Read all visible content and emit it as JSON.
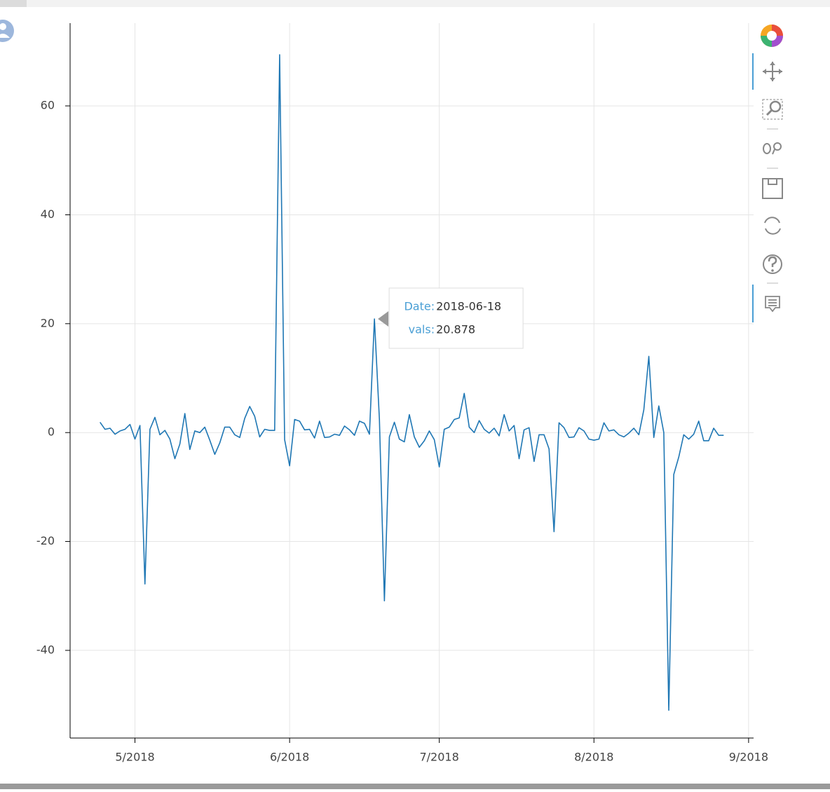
{
  "chart_data": {
    "type": "line",
    "x": [
      "2018-04-24",
      "2018-04-25",
      "2018-04-26",
      "2018-04-27",
      "2018-04-28",
      "2018-04-29",
      "2018-04-30",
      "2018-05-01",
      "2018-05-02",
      "2018-05-03",
      "2018-05-04",
      "2018-05-05",
      "2018-05-06",
      "2018-05-07",
      "2018-05-08",
      "2018-05-09",
      "2018-05-10",
      "2018-05-11",
      "2018-05-12",
      "2018-05-13",
      "2018-05-14",
      "2018-05-15",
      "2018-05-16",
      "2018-05-17",
      "2018-05-18",
      "2018-05-19",
      "2018-05-20",
      "2018-05-21",
      "2018-05-22",
      "2018-05-23",
      "2018-05-24",
      "2018-05-25",
      "2018-05-26",
      "2018-05-27",
      "2018-05-28",
      "2018-05-29",
      "2018-05-30",
      "2018-05-31",
      "2018-06-01",
      "2018-06-02",
      "2018-06-03",
      "2018-06-04",
      "2018-06-05",
      "2018-06-06",
      "2018-06-07",
      "2018-06-08",
      "2018-06-09",
      "2018-06-10",
      "2018-06-11",
      "2018-06-12",
      "2018-06-13",
      "2018-06-14",
      "2018-06-15",
      "2018-06-16",
      "2018-06-17",
      "2018-06-18",
      "2018-06-19",
      "2018-06-20",
      "2018-06-21",
      "2018-06-22",
      "2018-06-23",
      "2018-06-24",
      "2018-06-25",
      "2018-06-26",
      "2018-06-27",
      "2018-06-28",
      "2018-06-29",
      "2018-06-30",
      "2018-07-01",
      "2018-07-02",
      "2018-07-03",
      "2018-07-04",
      "2018-07-05",
      "2018-07-06",
      "2018-07-07",
      "2018-07-08",
      "2018-07-09",
      "2018-07-10",
      "2018-07-11",
      "2018-07-12",
      "2018-07-13",
      "2018-07-14",
      "2018-07-15",
      "2018-07-16",
      "2018-07-17",
      "2018-07-18",
      "2018-07-19",
      "2018-07-20",
      "2018-07-21",
      "2018-07-22",
      "2018-07-23",
      "2018-07-24",
      "2018-07-25",
      "2018-07-26",
      "2018-07-27",
      "2018-07-28",
      "2018-07-29",
      "2018-07-30",
      "2018-07-31",
      "2018-08-01",
      "2018-08-02",
      "2018-08-03",
      "2018-08-04",
      "2018-08-05",
      "2018-08-06",
      "2018-08-07",
      "2018-08-08",
      "2018-08-09",
      "2018-08-10",
      "2018-08-11",
      "2018-08-12",
      "2018-08-13",
      "2018-08-14",
      "2018-08-15",
      "2018-08-16",
      "2018-08-17",
      "2018-08-18",
      "2018-08-19",
      "2018-08-20",
      "2018-08-21",
      "2018-08-22",
      "2018-08-23",
      "2018-08-24",
      "2018-08-25",
      "2018-08-26",
      "2018-08-27"
    ],
    "series": [
      {
        "color": "#1f77b4",
        "values": [
          1.9,
          0.6,
          0.8,
          -0.3,
          0.3,
          0.6,
          1.5,
          -1.2,
          1.3,
          -27.8,
          0.6,
          2.8,
          -0.4,
          0.4,
          -1.2,
          -4.8,
          -2.1,
          3.5,
          -3.1,
          0.3,
          0,
          1.0,
          -1.4,
          -4.0,
          -1.9,
          1.0,
          1.0,
          -0.4,
          -0.9,
          2.6,
          4.8,
          3.0,
          -0.8,
          0.6,
          0.4,
          0.4,
          69.4,
          -1.3,
          -6.1,
          2.4,
          2.1,
          0.5,
          0.6,
          -1.0,
          2.1,
          -0.9,
          -0.8,
          -0.3,
          -0.5,
          1.2,
          0.5,
          -0.5,
          2.1,
          1.7,
          -0.3,
          20.878,
          2.4,
          -30.9,
          -0.8,
          1.9,
          -1.2,
          -1.7,
          3.3,
          -0.8,
          -2.7,
          -1.5,
          0.3,
          -1.3,
          -6.3,
          0.6,
          1.0,
          2.4,
          2.7,
          7.2,
          1.0,
          0,
          2.2,
          0.6,
          -0.1,
          0.8,
          -0.6,
          3.3,
          0.3,
          1.3,
          -4.8,
          0.5,
          0.9,
          -5.3,
          -0.4,
          -0.4,
          -3.0,
          -18.2,
          1.8,
          0.9,
          -0.9,
          -0.8,
          0.9,
          0.3,
          -1.2,
          -1.4,
          -1.2,
          1.8,
          0.3,
          0.5,
          -0.4,
          -0.8,
          -0.1,
          0.8,
          -0.4,
          4.2,
          14.0,
          -0.9,
          4.9,
          0,
          -51.0,
          -7.7,
          -4.5,
          -0.4,
          -1.2,
          -0.3,
          2.1,
          -1.5,
          -1.5,
          0.8,
          -0.5,
          -0.5
        ]
      }
    ],
    "xlim": [
      "2018-04-18",
      "2018-09-02"
    ],
    "xticks": [
      {
        "value": "2018-05-01",
        "label": "5/2018"
      },
      {
        "value": "2018-06-01",
        "label": "6/2018"
      },
      {
        "value": "2018-07-01",
        "label": "7/2018"
      },
      {
        "value": "2018-08-01",
        "label": "8/2018"
      },
      {
        "value": "2018-09-01",
        "label": "9/2018"
      }
    ],
    "ylim": [
      -56.1,
      75.2
    ],
    "yticks": [
      -40,
      -20,
      0,
      20,
      40,
      60
    ],
    "grid": true,
    "tooltip": {
      "labels": [
        "Date:",
        "vals:"
      ]
    }
  }
}
